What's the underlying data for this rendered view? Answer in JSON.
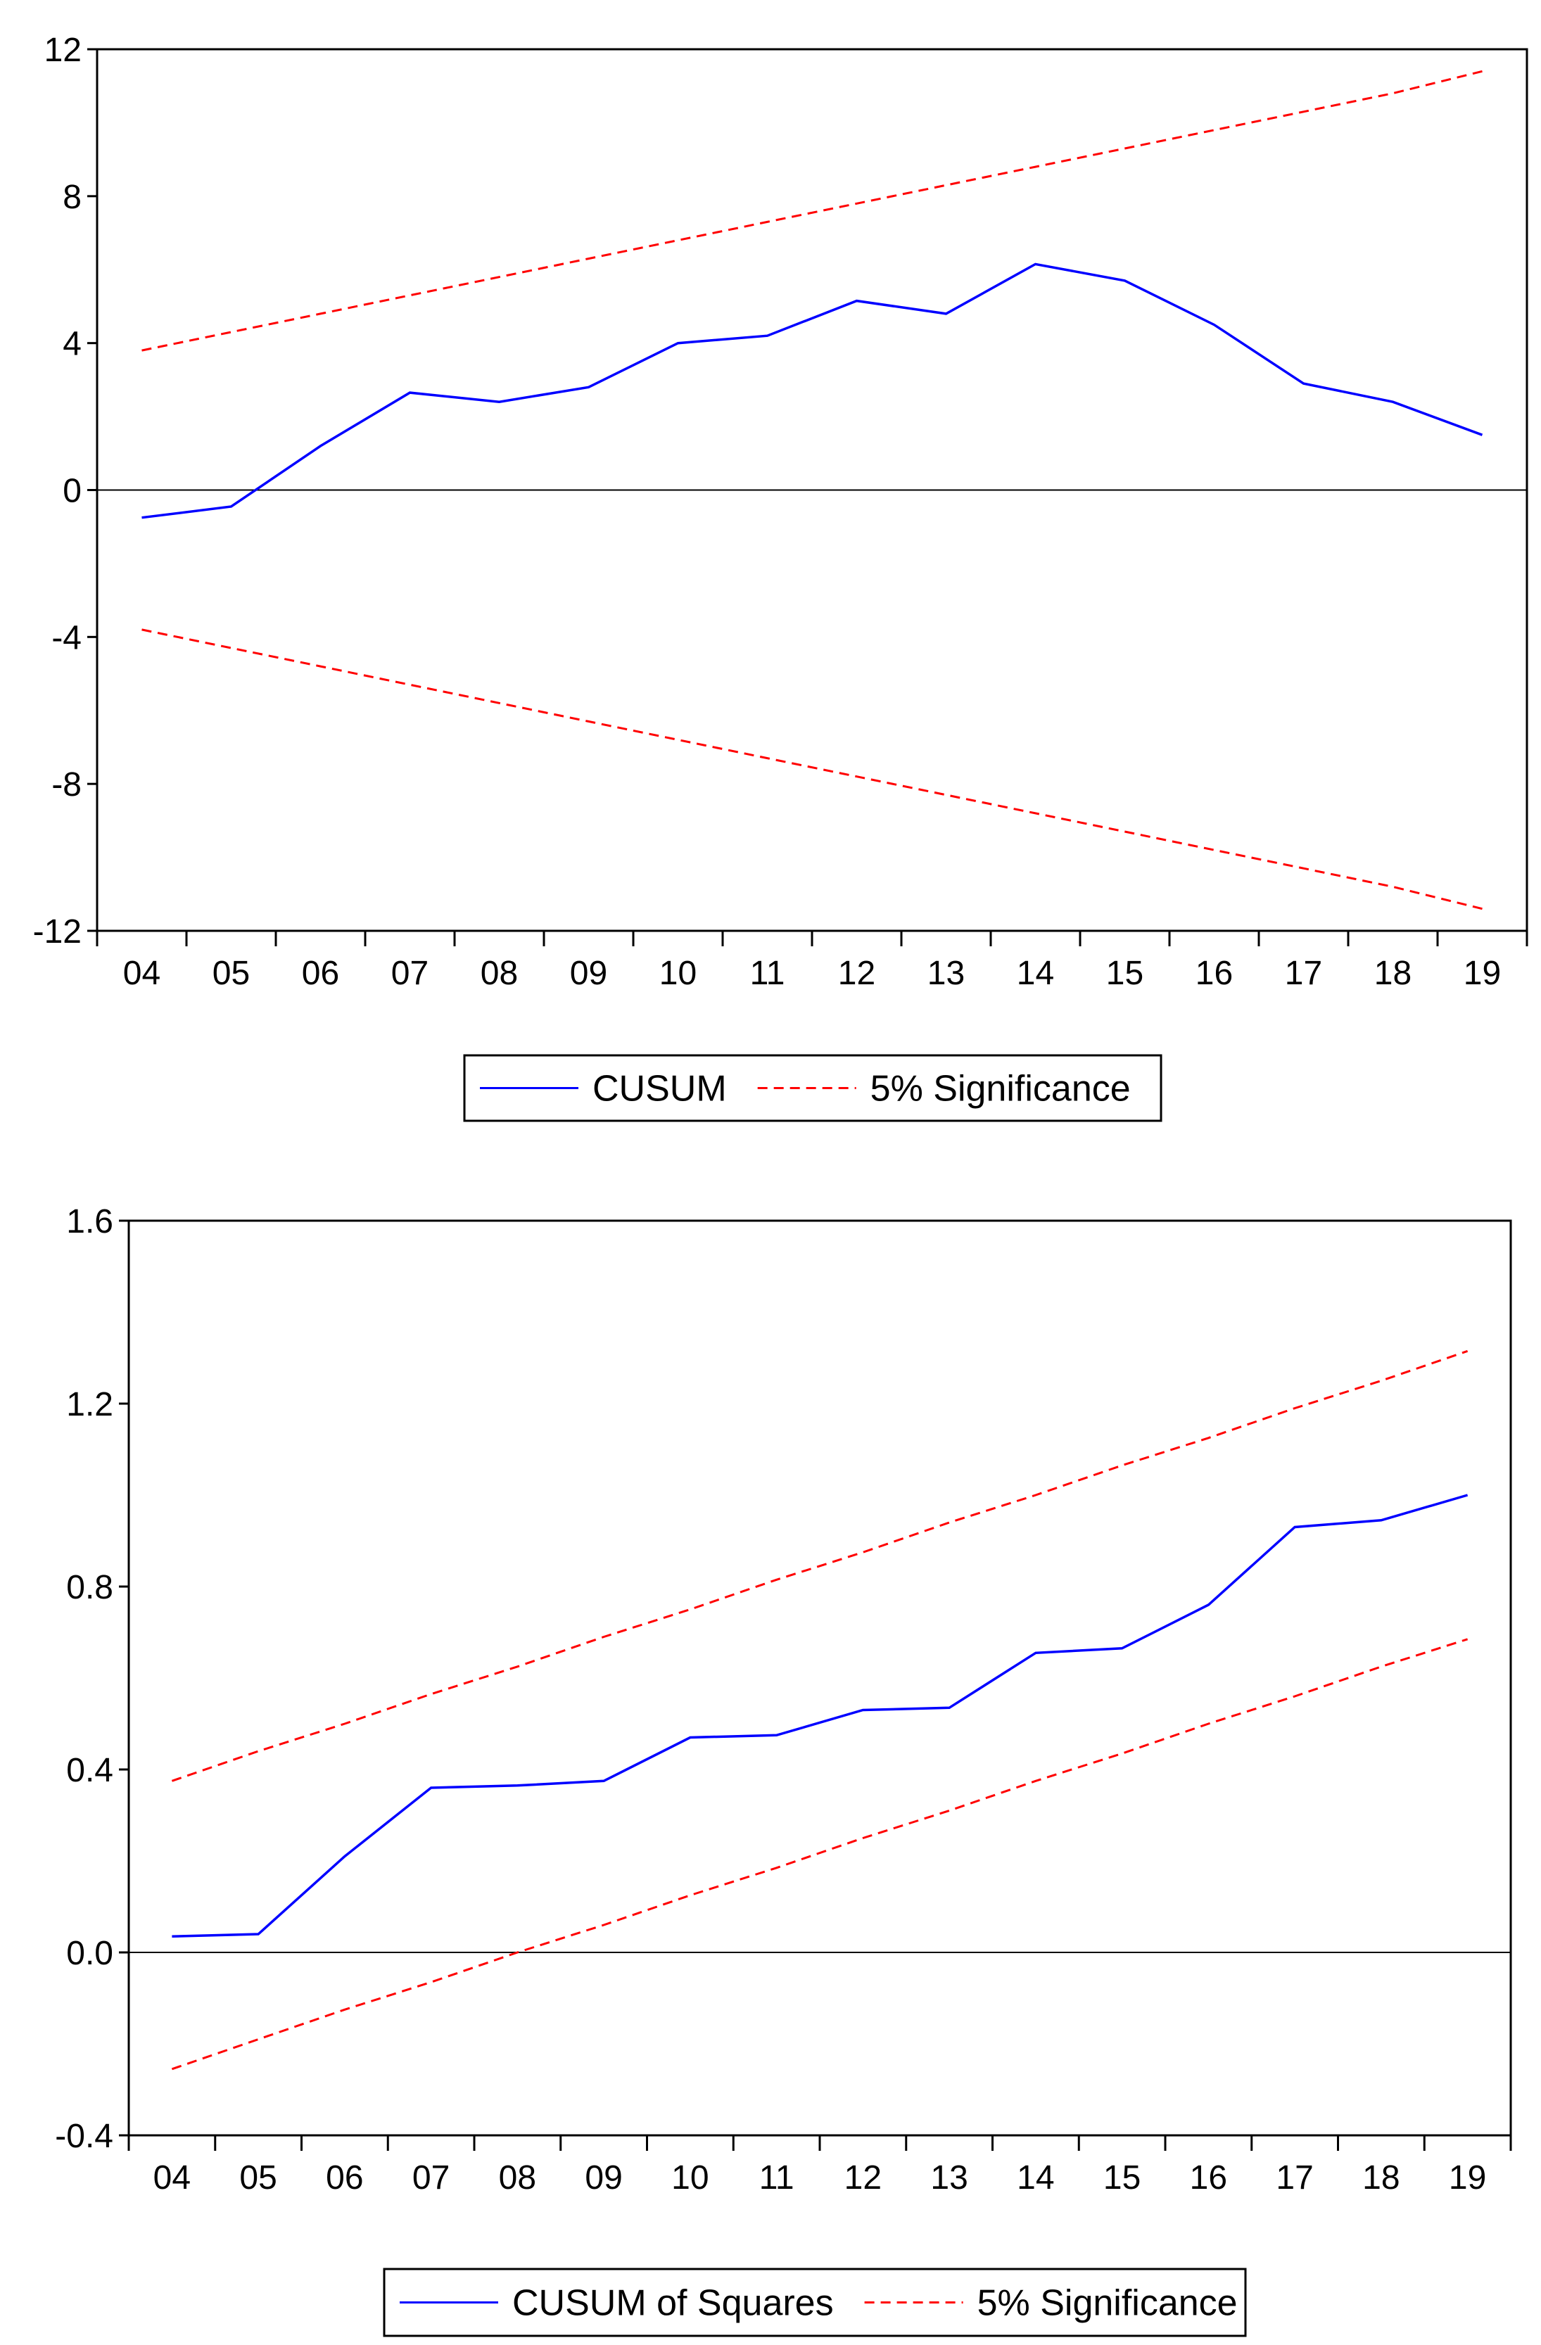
{
  "colors": {
    "series": "#0000ff",
    "significance": "#ff0000",
    "axis": "#000000",
    "background": "#ffffff"
  },
  "chart_data": [
    {
      "type": "line",
      "title": "",
      "xlabel": "",
      "ylabel": "",
      "categories": [
        "04",
        "05",
        "06",
        "07",
        "08",
        "09",
        "10",
        "11",
        "12",
        "13",
        "14",
        "15",
        "16",
        "17",
        "18",
        "19"
      ],
      "ylim": [
        -12,
        12
      ],
      "yticks": [
        "12",
        "8",
        "4",
        "0",
        "-4",
        "-8",
        "-12"
      ],
      "ytick_values": [
        12,
        8,
        4,
        0,
        -4,
        -8,
        -12
      ],
      "zero_line": true,
      "series": [
        {
          "name": "CUSUM",
          "style": "solid",
          "values": [
            -0.75,
            -0.45,
            1.2,
            2.65,
            2.4,
            2.8,
            4.0,
            4.2,
            5.15,
            4.8,
            6.15,
            5.7,
            4.5,
            2.9,
            2.4,
            1.5
          ]
        },
        {
          "name": "5% Significance",
          "style": "dashed",
          "values": [
            3.8,
            4.3,
            4.8,
            5.3,
            5.8,
            6.3,
            6.8,
            7.3,
            7.8,
            8.3,
            8.8,
            9.3,
            9.8,
            10.3,
            10.8,
            11.4
          ]
        },
        {
          "name": "5% Significance lower",
          "style": "dashed",
          "legend": false,
          "values": [
            -3.8,
            -4.3,
            -4.8,
            -5.3,
            -5.8,
            -6.3,
            -6.8,
            -7.3,
            -7.8,
            -8.3,
            -8.8,
            -9.3,
            -9.8,
            -10.3,
            -10.8,
            -11.4
          ]
        }
      ],
      "legend": {
        "position": "bottom-center",
        "entries": [
          {
            "label": "CUSUM",
            "style": "solid"
          },
          {
            "label": "5% Significance",
            "style": "dashed"
          }
        ]
      }
    },
    {
      "type": "line",
      "title": "",
      "xlabel": "",
      "ylabel": "",
      "categories": [
        "04",
        "05",
        "06",
        "07",
        "08",
        "09",
        "10",
        "11",
        "12",
        "13",
        "14",
        "15",
        "16",
        "17",
        "18",
        "19"
      ],
      "ylim": [
        -0.4,
        1.6
      ],
      "yticks": [
        "1.6",
        "1.2",
        "0.8",
        "0.4",
        "0.0",
        "-0.4"
      ],
      "ytick_values": [
        1.6,
        1.2,
        0.8,
        0.4,
        0.0,
        -0.4
      ],
      "zero_line": true,
      "series": [
        {
          "name": "CUSUM of Squares",
          "style": "solid",
          "values": [
            0.035,
            0.04,
            0.21,
            0.36,
            0.365,
            0.375,
            0.47,
            0.475,
            0.53,
            0.535,
            0.655,
            0.665,
            0.76,
            0.93,
            0.945,
            1.0
          ]
        },
        {
          "name": "5% Significance",
          "style": "dashed",
          "values": [
            0.375,
            0.44,
            0.5,
            0.565,
            0.625,
            0.69,
            0.75,
            0.815,
            0.875,
            0.94,
            1.0,
            1.065,
            1.125,
            1.19,
            1.25,
            1.315
          ]
        },
        {
          "name": "5% Significance lower",
          "style": "dashed",
          "legend": false,
          "values": [
            -0.255,
            -0.19,
            -0.125,
            -0.065,
            0.0,
            0.06,
            0.125,
            0.185,
            0.25,
            0.31,
            0.375,
            0.435,
            0.5,
            0.56,
            0.625,
            0.685
          ]
        }
      ],
      "legend": {
        "position": "bottom-center",
        "entries": [
          {
            "label": "CUSUM of Squares",
            "style": "solid"
          },
          {
            "label": "5% Significance",
            "style": "dashed"
          }
        ]
      }
    }
  ]
}
